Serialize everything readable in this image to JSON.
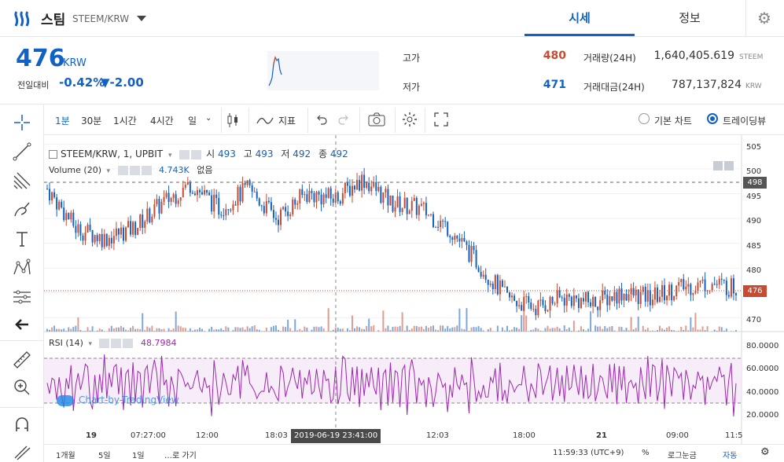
{
  "header": {
    "coin_name": "스팀",
    "pair": "STEEM/KRW",
    "tabs": [
      "시세",
      "정보"
    ]
  },
  "price": {
    "current": "476",
    "unit": "KRW",
    "prev_label": "전일대비",
    "change_pct": "-0.42%",
    "change_val": "▼-2.00"
  },
  "stats": {
    "high_label": "고가",
    "high": "480",
    "low_label": "저가",
    "low": "471",
    "vol_label": "거래량(24H)",
    "vol": "1,640,405.619",
    "vol_unit": "STEEM",
    "amt_label": "거래대금(24H)",
    "amt": "787,137,824",
    "amt_unit": "KRW"
  },
  "toolbar": {
    "intervals": [
      "1분",
      "30분",
      "1시간",
      "4시간",
      "일"
    ],
    "indicators": "지표",
    "basic_chart": "기본 차트",
    "trading_view": "트레이딩뷰"
  },
  "legend": {
    "main_title": "STEEM/KRW, 1, UPBIT",
    "o_label": "시",
    "o": "493",
    "h_label": "고",
    "h": "493",
    "l_label": "저",
    "l": "492",
    "c_label": "종",
    "c": "492",
    "volume": "Volume (20)",
    "volume_val": "4.743K",
    "volume_extra": "없음",
    "rsi": "RSI (14)",
    "rsi_val": "48.7984"
  },
  "price_axis": [
    "505",
    "500",
    "495",
    "490",
    "485",
    "480",
    "475",
    "470"
  ],
  "price_tags": {
    "crosshair": "498",
    "last": "476"
  },
  "rsi_axis": [
    "80.0000",
    "60.0000",
    "40.0000",
    "20.0000"
  ],
  "time_axis": [
    "19",
    "07:27:00",
    "12:00",
    "18:03",
    "2019-06-19 23:41:00",
    "12:03",
    "18:00",
    "21",
    "09:00",
    "11:5"
  ],
  "bottom_bar": {
    "ranges": [
      "1개월",
      "5일",
      "1일",
      "…로 가기"
    ],
    "clock": "11:59:33 (UTC+9)",
    "percent": "%",
    "log": "로그눈금",
    "auto": "자동"
  },
  "watermark": "Chart-by-TradingView",
  "chart_data": {
    "type": "candlestick",
    "ylim": [
      468,
      506
    ],
    "series_summary": [
      496,
      488,
      486,
      488,
      493,
      497,
      492,
      496,
      490,
      495,
      494,
      498,
      493,
      492,
      488,
      481,
      474,
      472,
      474,
      473,
      475,
      474,
      476,
      477,
      476
    ],
    "rsi_ylim": [
      10,
      85
    ],
    "colors": {
      "up": "#c84a31",
      "down": "#1261c4",
      "rsi": "#9c27b0"
    }
  }
}
